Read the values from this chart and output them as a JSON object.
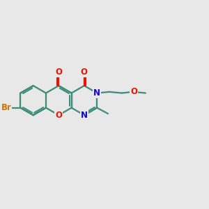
{
  "bg": "#e8e8e8",
  "bond_color": "#3d8b7a",
  "bond_width": 1.6,
  "atom_colors": {
    "Br": "#cc7700",
    "O": "#ee1100",
    "N": "#1100dd",
    "C": "#3d8b7a"
  },
  "s": 0.72,
  "ox": 1.45,
  "oy": 5.2,
  "figsize": [
    3.0,
    3.0
  ],
  "dpi": 100
}
